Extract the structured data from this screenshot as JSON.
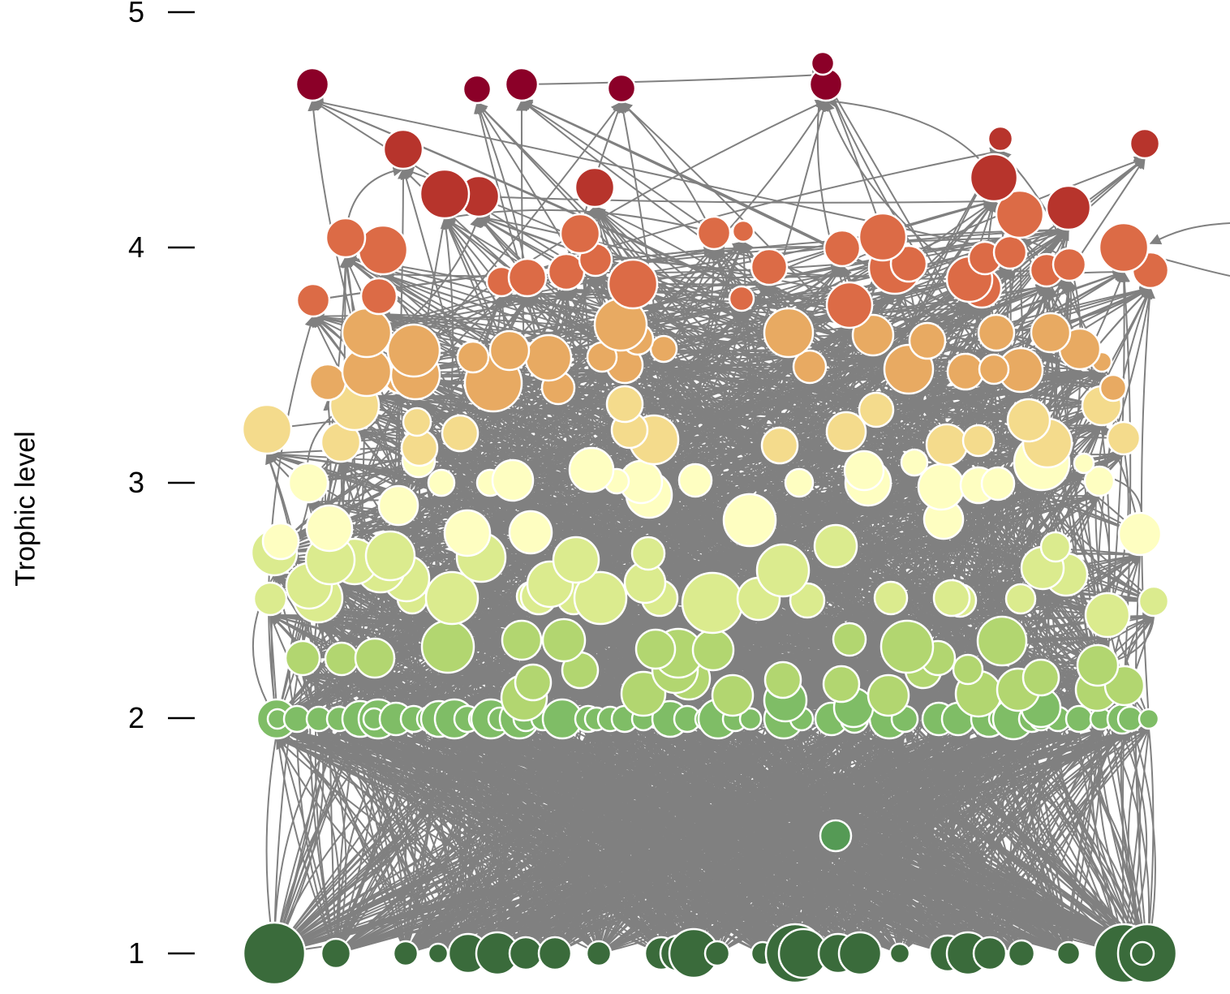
{
  "figure": {
    "y_axis_label": "Trophic level",
    "tick_labels": [
      "1",
      "2",
      "3",
      "4",
      "5"
    ],
    "edge_color": "#808080",
    "node_stroke": "#ffffff"
  },
  "chart_data": {
    "type": "network",
    "ylabel": "Trophic level",
    "ylim": [
      1,
      5
    ],
    "yticks": [
      1,
      2,
      3,
      4,
      5
    ],
    "color_scale": {
      "1": "#3a6b3b",
      "1.5": "#559a55",
      "2": "#7fbd66",
      "2.25": "#b2d670",
      "2.5": "#dbeb8e",
      "3": "#fefec1",
      "3.25": "#f4db8c",
      "3.5": "#e8aa62",
      "4": "#dc6b46",
      "4.25": "#b7342c",
      "4.7": "#8b0028"
    },
    "notes": "Food-web network: species nodes placed vertically by trophic level; node size reflects abundance; grey arrows are feeding links from prey to predator."
  }
}
